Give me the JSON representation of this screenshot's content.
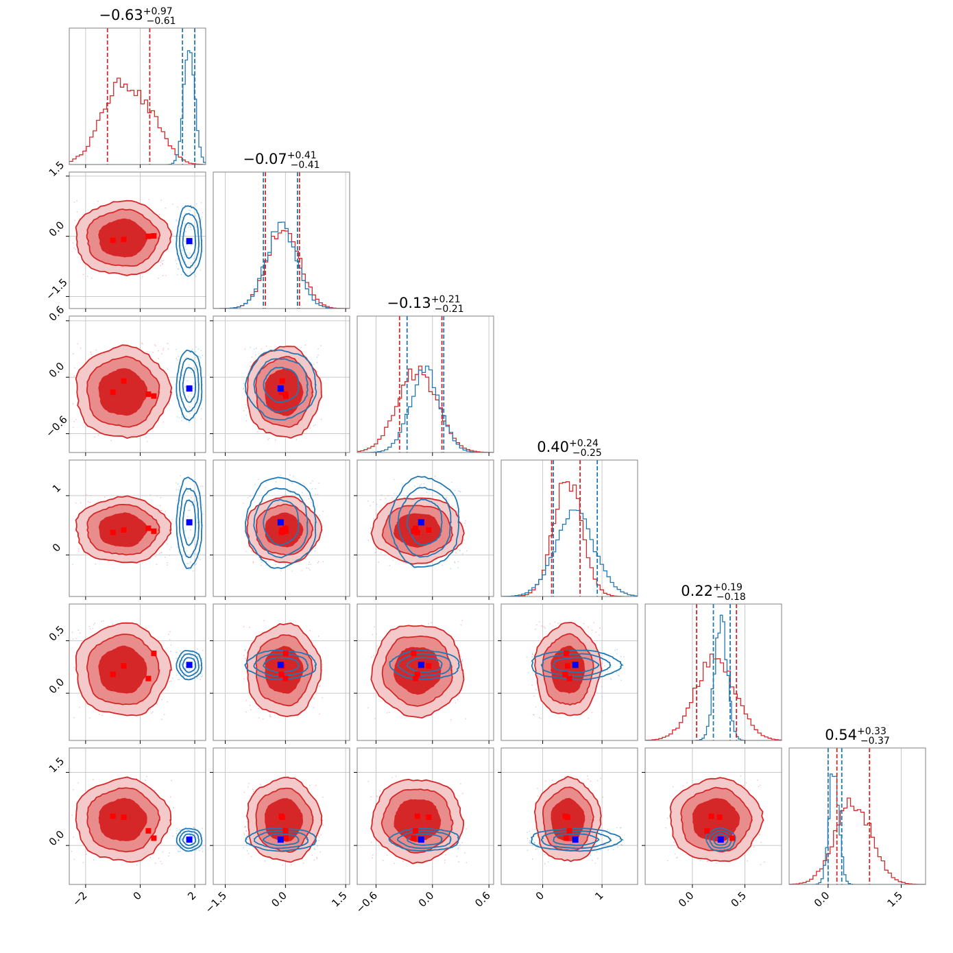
{
  "colors": {
    "series_red": "#d62728",
    "series_blue": "#1f77b4",
    "red_fill_outer": "#f4c9c9",
    "red_fill_mid": "#e88c8c",
    "red_fill_inner": "#d62728",
    "marker_red": "#ff0000",
    "marker_blue": "#0000ff"
  },
  "chart_data": {
    "type": "corner",
    "series": [
      {
        "name": "",
        "color": "red"
      },
      {
        "name": "",
        "color": "blue"
      }
    ],
    "n_params": 6,
    "titles": [
      {
        "value": "−0.63",
        "plus": "+0.97",
        "minus": "−0.61"
      },
      {
        "value": "−0.07",
        "plus": "+0.41",
        "minus": "−0.41"
      },
      {
        "value": "−0.13",
        "plus": "+0.21",
        "minus": "−0.21"
      },
      {
        "value": "0.40",
        "plus": "+0.24",
        "minus": "−0.25"
      },
      {
        "value": "0.22",
        "plus": "+0.19",
        "minus": "−0.18"
      },
      {
        "value": "0.54",
        "plus": "+0.33",
        "minus": "−0.37"
      }
    ],
    "ranges": [
      [
        -2.6,
        2.4
      ],
      [
        -1.8,
        1.6
      ],
      [
        -0.8,
        0.65
      ],
      [
        -0.7,
        1.6
      ],
      [
        -0.45,
        0.85
      ],
      [
        -0.8,
        2.0
      ]
    ],
    "ticks": [
      {
        "values": [
          -2,
          0,
          2
        ],
        "labels": [
          "−2",
          "0",
          "2"
        ]
      },
      {
        "values": [
          -1.5,
          0,
          1.5
        ],
        "labels": [
          "−1.5",
          "0.0",
          "1.5"
        ]
      },
      {
        "values": [
          -0.6,
          0,
          0.6
        ],
        "labels": [
          "−0.6",
          "0.0",
          "0.6"
        ]
      },
      {
        "values": [
          0,
          1
        ],
        "labels": [
          "0",
          "1"
        ]
      },
      {
        "values": [
          0,
          0.5
        ],
        "labels": [
          "0.0",
          "0.5"
        ]
      },
      {
        "values": [
          0,
          1.5
        ],
        "labels": [
          "0.0",
          "1.5"
        ]
      }
    ],
    "red": {
      "means": [
        -0.65,
        -0.05,
        -0.16,
        0.42,
        0.22,
        0.52
      ],
      "sds": [
        0.75,
        0.4,
        0.21,
        0.24,
        0.19,
        0.37
      ],
      "quantiles": [
        [
          -1.2,
          0.35
        ],
        [
          -0.5,
          0.35
        ],
        [
          -0.35,
          0.1
        ],
        [
          0.15,
          0.63
        ],
        [
          0.04,
          0.42
        ],
        [
          0.18,
          0.85
        ]
      ],
      "markers": [
        [
          -1.0,
          -0.6,
          0.3,
          0.5
        ],
        [
          -0.1,
          -0.08,
          0.0,
          0.01
        ],
        [
          -0.16,
          -0.04,
          -0.18,
          -0.2
        ],
        [
          0.38,
          0.42,
          0.45,
          0.4
        ],
        [
          0.18,
          0.26,
          0.14,
          0.38
        ],
        [
          0.6,
          0.58,
          0.3,
          0.15
        ]
      ]
    },
    "blue": {
      "means": [
        1.8,
        -0.1,
        -0.08,
        0.55,
        0.27,
        0.12
      ],
      "sds": [
        0.2,
        0.38,
        0.16,
        0.33,
        0.06,
        0.1
      ],
      "quantiles": [
        [
          1.55,
          2.0
        ],
        [
          -0.55,
          0.3
        ],
        [
          -0.27,
          0.12
        ],
        [
          0.18,
          0.92
        ],
        [
          0.2,
          0.36
        ],
        [
          0.0,
          0.28
        ]
      ],
      "truth": [
        1.8,
        -0.12,
        -0.12,
        0.55,
        0.27,
        0.12
      ]
    }
  }
}
